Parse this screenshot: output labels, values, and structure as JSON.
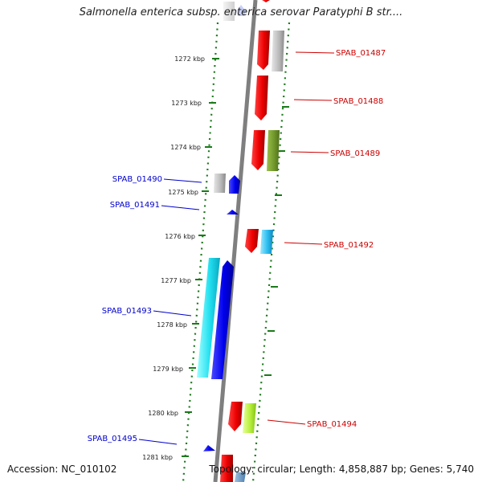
{
  "header": {
    "title": "Salmonella enterica subsp. enterica serovar Paratyphi B str...."
  },
  "footer": {
    "accession": "Accession: NC_010102",
    "topology": "Topology: circular; Length: 4,858,887 bp; Genes: 5,740"
  },
  "colors": {
    "plus_strand_label": "#cc0000",
    "minus_strand_label": "#0000cc",
    "backbone": "#888888",
    "tick": "#1a7a1a"
  },
  "map": {
    "kbp_labels": [
      "1272 kbp",
      "1273 kbp",
      "1274 kbp",
      "1275 kbp",
      "1276 kbp",
      "1277 kbp",
      "1278 kbp",
      "1279 kbp",
      "1280 kbp",
      "1281 kbp"
    ],
    "gene_labels": [
      {
        "name": "SPAB_01487",
        "strand": "plus"
      },
      {
        "name": "SPAB_01488",
        "strand": "plus"
      },
      {
        "name": "SPAB_01489",
        "strand": "plus"
      },
      {
        "name": "SPAB_01490",
        "strand": "minus"
      },
      {
        "name": "SPAB_01491",
        "strand": "minus"
      },
      {
        "name": "SPAB_01492",
        "strand": "plus"
      },
      {
        "name": "SPAB_01493",
        "strand": "minus"
      },
      {
        "name": "SPAB_01494",
        "strand": "plus"
      },
      {
        "name": "SPAB_01495",
        "strand": "minus"
      }
    ]
  }
}
